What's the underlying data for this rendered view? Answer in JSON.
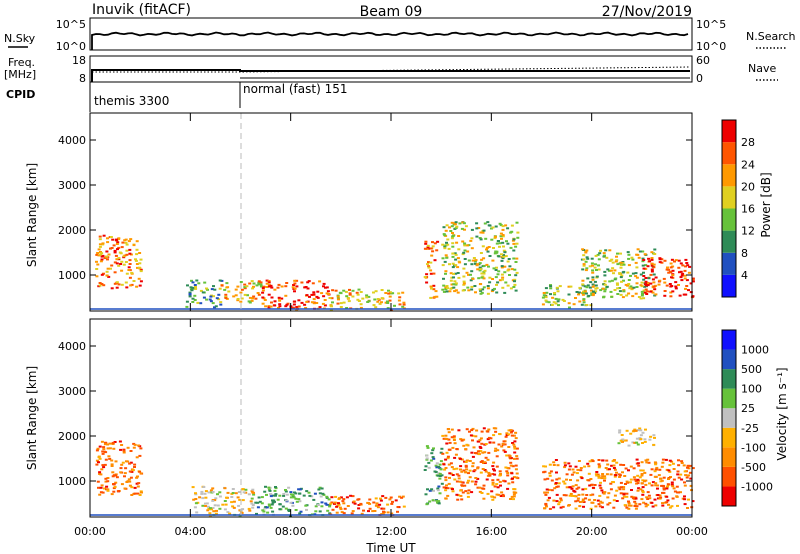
{
  "header": {
    "title_left": "Inuvik (fitACF)",
    "title_center": "Beam 09",
    "title_right": "27/Nov/2019"
  },
  "noise_panel": {
    "left_label": "N.Sky",
    "right_label": "N.Search",
    "left_ticks": [
      "10^5",
      "10^0"
    ],
    "right_ticks": [
      "10^5",
      "10^0"
    ]
  },
  "freq_panel": {
    "left_label_1": "Freq.",
    "left_label_2": "[MHz]",
    "right_label": "Nave",
    "left_ticks": [
      "18",
      "8"
    ],
    "right_ticks": [
      "60",
      "0"
    ]
  },
  "cpid_panel": {
    "label": "CPID",
    "segments": [
      {
        "name": "themis 3300",
        "start": "00:00",
        "end": "06:00"
      },
      {
        "name": "normal (fast) 151",
        "start": "06:00",
        "end": "24:00"
      }
    ]
  },
  "colors": {
    "power": [
      "#1010ff",
      "#2050c0",
      "#2e8b57",
      "#66c23a",
      "#e0d020",
      "#ff9900",
      "#ff5500",
      "#ee0000"
    ],
    "velocity": [
      "#ee0000",
      "#ff5000",
      "#ff8c00",
      "#ffb000",
      "#c0c0c0",
      "#66c23a",
      "#2e8b57",
      "#2050c0",
      "#1010ff"
    ]
  },
  "chart_data": [
    {
      "type": "heatmap",
      "name": "power",
      "ylabel": "Slant Range [km]",
      "yticks": [
        "1000",
        "2000",
        "3000",
        "4000"
      ],
      "ylim": [
        200,
        4600
      ],
      "xlim": [
        "00:00",
        "24:00"
      ],
      "colorbar_label": "Power [dB]",
      "colorbar_ticks": [
        "4",
        "8",
        "12",
        "16",
        "20",
        "24",
        "28"
      ],
      "colorbar_range": [
        0,
        32
      ],
      "regions": [
        {
          "t0": 0.2,
          "t1": 2.0,
          "r0": 700,
          "r1": 1900,
          "level": 24
        },
        {
          "t0": 3.8,
          "t1": 5.2,
          "r0": 300,
          "r1": 900,
          "level": 12
        },
        {
          "t0": 5.2,
          "t1": 6.8,
          "r0": 400,
          "r1": 900,
          "level": 20
        },
        {
          "t0": 6.8,
          "t1": 9.5,
          "r0": 250,
          "r1": 900,
          "level": 26
        },
        {
          "t0": 9.5,
          "t1": 12.5,
          "r0": 250,
          "r1": 700,
          "level": 20
        },
        {
          "t0": 13.3,
          "t1": 13.8,
          "r0": 500,
          "r1": 1800,
          "level": 24
        },
        {
          "t0": 14.0,
          "t1": 17.0,
          "r0": 600,
          "r1": 2200,
          "level": 16
        },
        {
          "t0": 18.0,
          "t1": 20.0,
          "r0": 300,
          "r1": 800,
          "level": 14
        },
        {
          "t0": 19.5,
          "t1": 22.5,
          "r0": 500,
          "r1": 1600,
          "level": 16
        },
        {
          "t0": 22.0,
          "t1": 24.0,
          "r0": 500,
          "r1": 1400,
          "level": 28
        }
      ]
    },
    {
      "type": "heatmap",
      "name": "velocity",
      "ylabel": "Slant Range [km]",
      "yticks": [
        "1000",
        "2000",
        "3000",
        "4000"
      ],
      "ylim": [
        200,
        4600
      ],
      "xlabel": "Time UT",
      "xticks": [
        "00:00",
        "04:00",
        "08:00",
        "12:00",
        "16:00",
        "20:00",
        "00:00"
      ],
      "xlim": [
        "00:00",
        "24:00"
      ],
      "colorbar_label": "Velocity [m s⁻¹]",
      "colorbar_ticks": [
        "-1000",
        "-500",
        "-100",
        "-25",
        "25",
        "100",
        "500",
        "1000"
      ],
      "regions": [
        {
          "t0": 0.2,
          "t1": 2.0,
          "r0": 700,
          "r1": 1900,
          "level": -200
        },
        {
          "t0": 4.0,
          "t1": 6.5,
          "r0": 250,
          "r1": 900,
          "level": 0
        },
        {
          "t0": 6.5,
          "t1": 9.5,
          "r0": 250,
          "r1": 900,
          "level": 150
        },
        {
          "t0": 9.5,
          "t1": 12.5,
          "r0": 250,
          "r1": 700,
          "level": -150
        },
        {
          "t0": 13.3,
          "t1": 14.0,
          "r0": 500,
          "r1": 1800,
          "level": 150
        },
        {
          "t0": 14.0,
          "t1": 17.0,
          "r0": 600,
          "r1": 2200,
          "level": -200
        },
        {
          "t0": 18.0,
          "t1": 24.0,
          "r0": 400,
          "r1": 1500,
          "level": -250
        },
        {
          "t0": 21.0,
          "t1": 22.5,
          "r0": 1800,
          "r1": 2200,
          "level": 0
        }
      ]
    }
  ]
}
